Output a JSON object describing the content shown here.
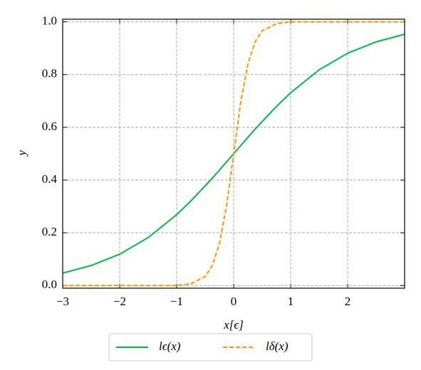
{
  "chart_data": {
    "type": "line",
    "xlabel": "x[ϵ]",
    "ylabel": "y",
    "x": [
      -3,
      -2.5,
      -2,
      -1.5,
      -1,
      -0.75,
      -0.5,
      -0.375,
      -0.25,
      -0.125,
      0,
      0.125,
      0.25,
      0.375,
      0.5,
      0.75,
      1,
      1.5,
      2,
      2.5,
      3
    ],
    "series": [
      {
        "name": "lϵ(x)",
        "color": "#00b945",
        "dash": false,
        "values": [
          0.047,
          0.076,
          0.119,
          0.182,
          0.269,
          0.321,
          0.378,
          0.407,
          0.438,
          0.469,
          0.5,
          0.531,
          0.562,
          0.593,
          0.622,
          0.679,
          0.731,
          0.818,
          0.881,
          0.924,
          0.953
        ]
      },
      {
        "name": "lδ(x)",
        "color": "#ff9500",
        "dash": true,
        "values": [
          0,
          0,
          0,
          0,
          0,
          0.007,
          0.034,
          0.076,
          0.159,
          0.303,
          0.5,
          0.697,
          0.841,
          0.924,
          0.966,
          0.993,
          1,
          1,
          1,
          1,
          1
        ]
      }
    ],
    "xlim": [
      -3,
      3
    ],
    "ylim": [
      -0.01,
      1.01
    ],
    "xticks": [
      {
        "value": -3,
        "label": "−3"
      },
      {
        "value": -2,
        "label": "−2"
      },
      {
        "value": -1,
        "label": "−1"
      },
      0,
      1,
      2
    ],
    "yticks": [
      {
        "value": 0,
        "label": "0.0"
      },
      0.2,
      0.4,
      0.6,
      0.8,
      {
        "value": 1,
        "label": "1.0"
      }
    ],
    "grid": true,
    "legend": "below"
  }
}
